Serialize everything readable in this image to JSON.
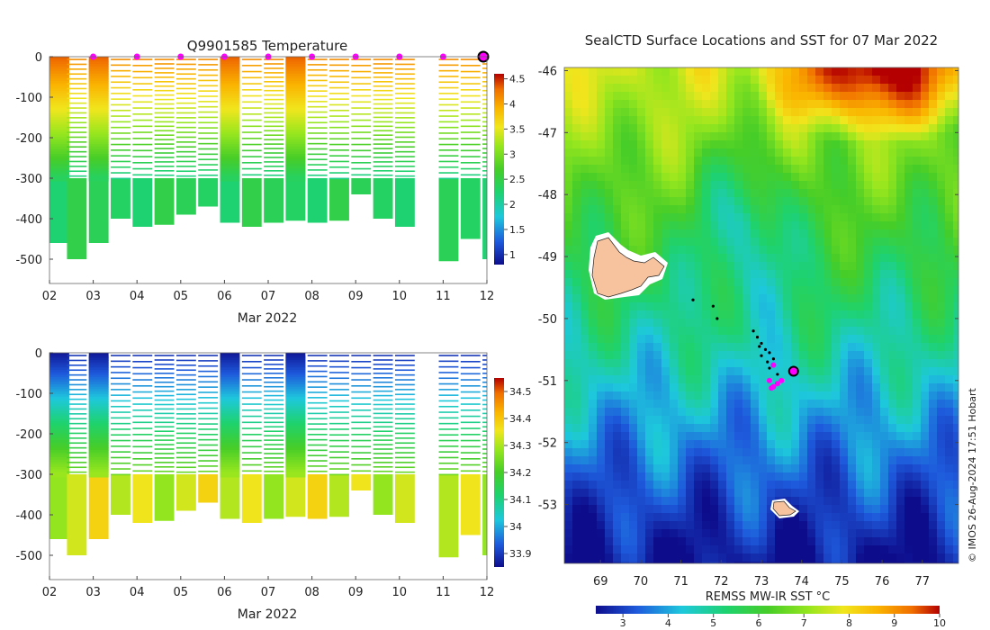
{
  "chart_data": [
    {
      "type": "heatmap",
      "title": "Q9901585  Temperature",
      "xlabel": "Mar 2022",
      "ylabel": "",
      "x_tick_labels": [
        "02",
        "03",
        "04",
        "05",
        "06",
        "07",
        "08",
        "09",
        "10",
        "11",
        "12"
      ],
      "x_range_days": [
        2,
        12
      ],
      "y_ticks": [
        0,
        -100,
        -200,
        -300,
        -400,
        -500
      ],
      "ylim": [
        -560,
        0
      ],
      "colorbar": {
        "ticks": [
          "1",
          "1.5",
          "2",
          "2.5",
          "3",
          "3.5",
          "4",
          "4.5"
        ],
        "range": [
          0.8,
          4.6
        ]
      },
      "profile_days": [
        2.0,
        2.4,
        2.9,
        3.4,
        3.9,
        4.4,
        4.9,
        5.4,
        5.9,
        6.4,
        6.9,
        7.4,
        7.9,
        8.4,
        8.9,
        9.4,
        9.9,
        10.4,
        10.9,
        11.4,
        11.9
      ],
      "profile_max_depths": [
        460,
        500,
        460,
        400,
        420,
        415,
        390,
        370,
        410,
        420,
        410,
        405,
        410,
        405,
        340,
        400,
        420,
        0,
        505,
        450,
        500
      ],
      "surface_markers_days": [
        3.0,
        4.0,
        5.0,
        6.0,
        7.0,
        8.0,
        9.0,
        10.0,
        11.0
      ],
      "current_marker_day": 12.0,
      "colorscale_stops": [
        "#0d0d8c",
        "#1e5adc",
        "#1ec8dc",
        "#1ed26e",
        "#46cd28",
        "#96e61e",
        "#f0e61e",
        "#fab400",
        "#f06e00",
        "#b40000"
      ]
    },
    {
      "type": "heatmap",
      "title": "",
      "xlabel": "Mar 2022",
      "ylabel": "",
      "x_tick_labels": [
        "02",
        "03",
        "04",
        "05",
        "06",
        "07",
        "08",
        "09",
        "10",
        "11",
        "12"
      ],
      "x_range_days": [
        2,
        12
      ],
      "y_ticks": [
        0,
        -100,
        -200,
        -300,
        -400,
        -500
      ],
      "ylim": [
        -560,
        0
      ],
      "colorbar": {
        "ticks": [
          "33.9",
          "34",
          "34.1",
          "34.2",
          "34.3",
          "34.4",
          "34.5"
        ],
        "range": [
          33.85,
          34.55
        ]
      }
    },
    {
      "type": "heatmap",
      "title": "SealCTD Surface Locations and SST for 07 Mar 2022",
      "xlabel": "",
      "ylabel": "",
      "x_tick_labels": [
        "69",
        "70",
        "71",
        "72",
        "73",
        "74",
        "75",
        "76",
        "77"
      ],
      "xlim": [
        68.1,
        77.9
      ],
      "y_tick_labels": [
        "-46",
        "-47",
        "-48",
        "-49",
        "-50",
        "-51",
        "-52",
        "-53"
      ],
      "ylim": [
        -53.95,
        -45.95
      ],
      "colorbar": {
        "label": "REMSS MW-IR SST °C",
        "ticks": [
          "3",
          "4",
          "5",
          "6",
          "7",
          "8",
          "9",
          "10"
        ],
        "range": [
          2.4,
          10.0
        ]
      },
      "track_points": [
        [
          72.8,
          -50.2
        ],
        [
          72.9,
          -50.3
        ],
        [
          73.0,
          -50.4
        ],
        [
          73.1,
          -50.5
        ],
        [
          73.2,
          -50.55
        ],
        [
          73.3,
          -50.65
        ],
        [
          73.2,
          -50.8
        ],
        [
          73.4,
          -50.9
        ],
        [
          73.0,
          -50.6
        ],
        [
          72.95,
          -50.45
        ],
        [
          73.15,
          -50.7
        ],
        [
          71.3,
          -49.7
        ],
        [
          71.8,
          -49.8
        ],
        [
          71.9,
          -50.0
        ]
      ],
      "surface_locations": [
        [
          73.2,
          -51.0
        ],
        [
          73.3,
          -51.1
        ],
        [
          73.4,
          -51.05
        ],
        [
          73.25,
          -51.12
        ],
        [
          73.5,
          -51.0
        ],
        [
          73.3,
          -50.75
        ]
      ],
      "current_location": [
        73.8,
        -50.85
      ]
    }
  ],
  "credit": "© IMOS 26-Aug-2024 17:51 Hobart"
}
